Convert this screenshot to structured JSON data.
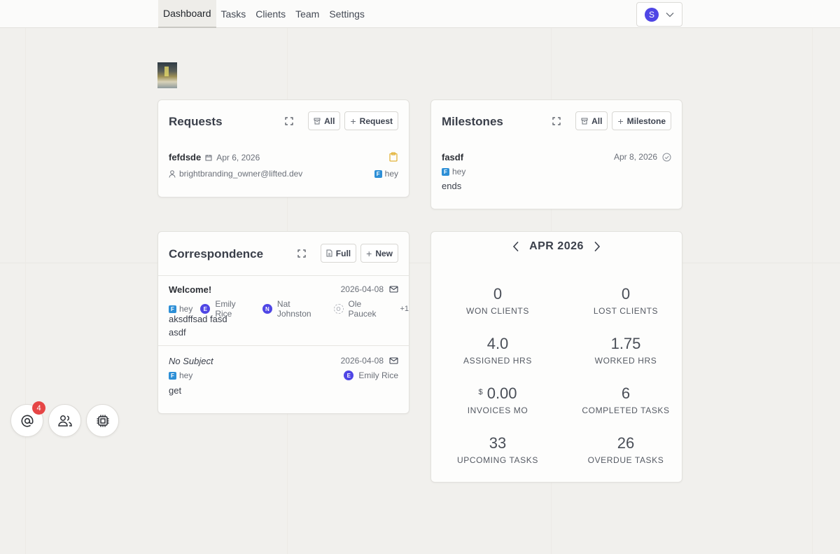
{
  "nav": {
    "items": [
      "Dashboard",
      "Tasks",
      "Clients",
      "Team",
      "Settings"
    ],
    "user_initial": "S"
  },
  "requests": {
    "title": "Requests",
    "all_label": "All",
    "add_label": "Request",
    "item": {
      "name": "fefdsde",
      "date": "Apr 6, 2026",
      "email": "brightbranding_owner@lifted.dev",
      "assignee": "hey",
      "assignee_initial": "F"
    }
  },
  "milestones": {
    "title": "Milestones",
    "all_label": "All",
    "add_label": "Milestone",
    "item": {
      "name": "fasdf",
      "date": "Apr 8, 2026",
      "assignee": "hey",
      "assignee_initial": "F",
      "description": "ends"
    }
  },
  "correspondence": {
    "title": "Correspondence",
    "full_label": "Full",
    "new_label": "New",
    "messages": [
      {
        "subject": "Welcome!",
        "date": "2026-04-08",
        "participants": [
          {
            "name": "hey",
            "initial": "F"
          },
          {
            "name": "Emily Rice",
            "initial": "E"
          },
          {
            "name": "Nat Johnston",
            "initial": "N"
          },
          {
            "name": "Ole Paucek",
            "initial": "O"
          }
        ],
        "more": "+1",
        "body_line1": "aksdffsad fasd",
        "body_line2": "asdf"
      },
      {
        "subject": "No Subject",
        "date": "2026-04-08",
        "sender": "hey",
        "sender_initial": "F",
        "recipient": "Emily Rice",
        "recipient_initial": "E",
        "body": "get"
      }
    ]
  },
  "stats": {
    "month": "APR 2026",
    "currency_symbol": "$",
    "items": [
      {
        "value": "0",
        "label": "WON CLIENTS"
      },
      {
        "value": "0",
        "label": "LOST CLIENTS"
      },
      {
        "value": "4.0",
        "label": "ASSIGNED HRS"
      },
      {
        "value": "1.75",
        "label": "WORKED HRS"
      },
      {
        "value": "0.00",
        "label": "INVOICES MO"
      },
      {
        "value": "6",
        "label": "COMPLETED TASKS"
      },
      {
        "value": "33",
        "label": "UPCOMING TASKS"
      },
      {
        "value": "26",
        "label": "OVERDUE TASKS"
      }
    ]
  },
  "fabs": {
    "mentions_badge": "4"
  },
  "colors": {
    "accent": "#4f46e5",
    "chip_blue": "#2d8fd6",
    "badge_red": "#e64545",
    "pending_yellow": "#e3b43a"
  }
}
